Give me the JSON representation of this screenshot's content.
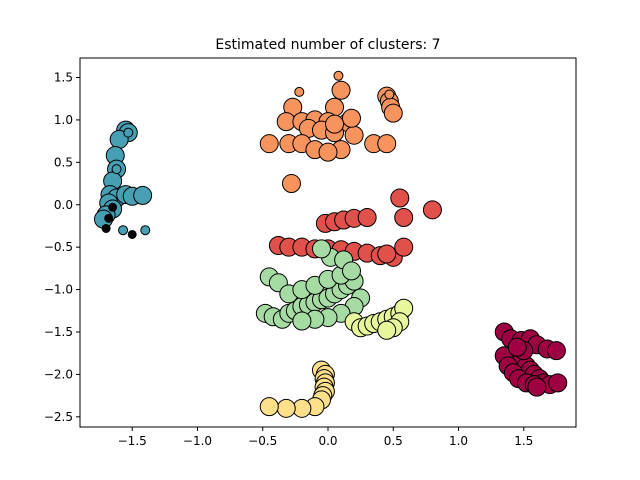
{
  "chart_data": {
    "type": "scatter",
    "title": "Estimated number of clusters: 7",
    "xlabel": "",
    "ylabel": "",
    "xlim": [
      -1.9,
      1.9
    ],
    "ylim": [
      -2.62,
      1.73
    ],
    "x_ticks": [
      -1.5,
      -1.0,
      -0.5,
      0.0,
      0.5,
      1.0,
      1.5
    ],
    "x_tick_labels": [
      "−1.5",
      "−1.0",
      "−0.5",
      "0.0",
      "0.5",
      "1.0",
      "1.5"
    ],
    "y_ticks": [
      1.5,
      1.0,
      0.5,
      0.0,
      -0.5,
      -1.0,
      -1.5,
      -2.0,
      -2.5
    ],
    "y_tick_labels": [
      "1.5",
      "1.0",
      "0.5",
      "0.0",
      "−0.5",
      "−1.0",
      "−1.5",
      "−2.0",
      "−2.5"
    ],
    "grid": false,
    "legend": "none",
    "marker_styles": {
      "core": "large circle with black edge",
      "non_core": "small circle with black edge",
      "noise": "small black circle"
    },
    "series": [
      {
        "color": "#5e4fa2",
        "points": [],
        "core_points": []
      },
      {
        "color": "#479fb4",
        "core_points": [
          [
            -1.55,
            0.88
          ],
          [
            -1.53,
            0.85
          ],
          [
            -1.6,
            0.77
          ],
          [
            -1.63,
            0.58
          ],
          [
            -1.62,
            0.42
          ],
          [
            -1.65,
            0.28
          ],
          [
            -1.67,
            0.12
          ],
          [
            -1.62,
            0.08
          ],
          [
            -1.55,
            0.12
          ],
          [
            -1.5,
            0.1
          ],
          [
            -1.42,
            0.11
          ],
          [
            -1.68,
            0.02
          ],
          [
            -1.65,
            -0.05
          ],
          [
            -1.7,
            -0.12
          ],
          [
            -1.72,
            -0.17
          ]
        ],
        "points": [
          [
            -1.62,
            0.42
          ],
          [
            -1.57,
            -0.3
          ],
          [
            -1.4,
            -0.3
          ],
          [
            -1.53,
            0.85
          ]
        ]
      },
      {
        "color": "#f7945e",
        "core_points": [
          [
            0.1,
            1.35
          ],
          [
            -0.27,
            1.15
          ],
          [
            0.05,
            1.15
          ],
          [
            -0.32,
            0.98
          ],
          [
            -0.2,
            0.98
          ],
          [
            -0.1,
            1.0
          ],
          [
            0.0,
            0.98
          ],
          [
            0.15,
            0.97
          ],
          [
            -0.15,
            0.9
          ],
          [
            -0.05,
            0.88
          ],
          [
            0.05,
            0.85
          ],
          [
            0.2,
            0.82
          ],
          [
            0.35,
            0.72
          ],
          [
            0.45,
            0.72
          ],
          [
            -0.45,
            0.72
          ],
          [
            -0.3,
            0.72
          ],
          [
            -0.2,
            0.72
          ],
          [
            -0.1,
            0.65
          ],
          [
            0.1,
            0.65
          ],
          [
            0.0,
            0.62
          ],
          [
            0.45,
            1.28
          ],
          [
            0.47,
            1.22
          ],
          [
            0.48,
            1.15
          ],
          [
            0.5,
            1.08
          ],
          [
            0.18,
            1.02
          ],
          [
            -0.28,
            0.25
          ],
          [
            0.05,
            0.95
          ]
        ],
        "points": [
          [
            0.08,
            1.52
          ],
          [
            -0.22,
            1.33
          ],
          [
            0.47,
            1.3
          ]
        ]
      },
      {
        "color": "#e1514b",
        "core_points": [
          [
            -0.38,
            -0.48
          ],
          [
            -0.3,
            -0.5
          ],
          [
            -0.2,
            -0.5
          ],
          [
            -0.1,
            -0.52
          ],
          [
            0.0,
            -0.52
          ],
          [
            0.1,
            -0.53
          ],
          [
            0.2,
            -0.55
          ],
          [
            0.3,
            -0.57
          ],
          [
            0.4,
            -0.6
          ],
          [
            0.5,
            -0.62
          ],
          [
            0.58,
            -0.5
          ],
          [
            -0.02,
            -0.22
          ],
          [
            0.05,
            -0.2
          ],
          [
            0.12,
            -0.18
          ],
          [
            0.2,
            -0.16
          ],
          [
            0.3,
            -0.15
          ],
          [
            0.55,
            0.08
          ],
          [
            0.58,
            -0.15
          ],
          [
            0.8,
            -0.06
          ],
          [
            0.45,
            -0.58
          ]
        ],
        "points": []
      },
      {
        "color": "#a6dba4",
        "core_points": [
          [
            -0.45,
            -0.85
          ],
          [
            -0.38,
            -0.92
          ],
          [
            -0.48,
            -1.28
          ],
          [
            -0.42,
            -1.32
          ],
          [
            -0.35,
            -1.35
          ],
          [
            -0.3,
            -1.28
          ],
          [
            -0.25,
            -1.25
          ],
          [
            -0.2,
            -1.2
          ],
          [
            -0.15,
            -1.18
          ],
          [
            -0.1,
            -1.15
          ],
          [
            -0.05,
            -1.12
          ],
          [
            0.0,
            -1.1
          ],
          [
            0.05,
            -1.05
          ],
          [
            0.1,
            -1.0
          ],
          [
            0.15,
            -0.95
          ],
          [
            0.2,
            -0.9
          ],
          [
            -0.3,
            -1.05
          ],
          [
            -0.2,
            -1.0
          ],
          [
            -0.1,
            -0.95
          ],
          [
            0.0,
            -0.88
          ],
          [
            0.1,
            -0.83
          ],
          [
            0.25,
            -1.1
          ],
          [
            0.2,
            -1.2
          ],
          [
            0.1,
            -1.28
          ],
          [
            0.0,
            -1.33
          ],
          [
            -0.1,
            -1.35
          ],
          [
            -0.2,
            -1.37
          ],
          [
            0.02,
            -0.62
          ],
          [
            -0.05,
            -0.52
          ],
          [
            0.12,
            -0.65
          ],
          [
            0.18,
            -0.78
          ]
        ],
        "points": []
      },
      {
        "color": "#e8f69c",
        "core_points": [
          [
            0.2,
            -1.38
          ],
          [
            0.25,
            -1.45
          ],
          [
            0.3,
            -1.43
          ],
          [
            0.35,
            -1.4
          ],
          [
            0.4,
            -1.38
          ],
          [
            0.45,
            -1.35
          ],
          [
            0.5,
            -1.32
          ],
          [
            0.55,
            -1.28
          ],
          [
            0.58,
            -1.22
          ],
          [
            0.55,
            -1.38
          ],
          [
            0.5,
            -1.45
          ],
          [
            0.45,
            -1.48
          ]
        ],
        "points": []
      },
      {
        "color": "#fee08b",
        "core_points": [
          [
            -0.05,
            -1.95
          ],
          [
            -0.02,
            -2.0
          ],
          [
            -0.03,
            -2.05
          ],
          [
            -0.02,
            -2.1
          ],
          [
            -0.03,
            -2.15
          ],
          [
            -0.02,
            -2.2
          ],
          [
            -0.04,
            -2.25
          ],
          [
            -0.05,
            -2.3
          ],
          [
            -0.1,
            -2.38
          ],
          [
            -0.2,
            -2.4
          ],
          [
            -0.32,
            -2.4
          ],
          [
            -0.45,
            -2.38
          ]
        ],
        "points": []
      },
      {
        "color": "#9e0142",
        "core_points": [
          [
            1.35,
            -1.5
          ],
          [
            1.4,
            -1.58
          ],
          [
            1.48,
            -1.6
          ],
          [
            1.55,
            -1.58
          ],
          [
            1.6,
            -1.65
          ],
          [
            1.68,
            -1.7
          ],
          [
            1.75,
            -1.72
          ],
          [
            1.42,
            -1.78
          ],
          [
            1.48,
            -1.85
          ],
          [
            1.52,
            -1.9
          ],
          [
            1.55,
            -1.95
          ],
          [
            1.58,
            -2.0
          ],
          [
            1.62,
            -2.05
          ],
          [
            1.65,
            -2.1
          ],
          [
            1.7,
            -2.12
          ],
          [
            1.76,
            -2.1
          ],
          [
            1.35,
            -1.78
          ],
          [
            1.38,
            -1.9
          ],
          [
            1.42,
            -1.98
          ],
          [
            1.46,
            -2.05
          ],
          [
            1.52,
            -2.1
          ],
          [
            1.58,
            -2.12
          ],
          [
            1.6,
            -2.15
          ],
          [
            1.5,
            -1.72
          ],
          [
            1.45,
            -1.68
          ]
        ],
        "points": []
      }
    ],
    "noise": [
      [
        -1.65,
        -0.03
      ],
      [
        -1.68,
        -0.16
      ],
      [
        -1.7,
        -0.28
      ],
      [
        -1.5,
        -0.35
      ]
    ]
  }
}
